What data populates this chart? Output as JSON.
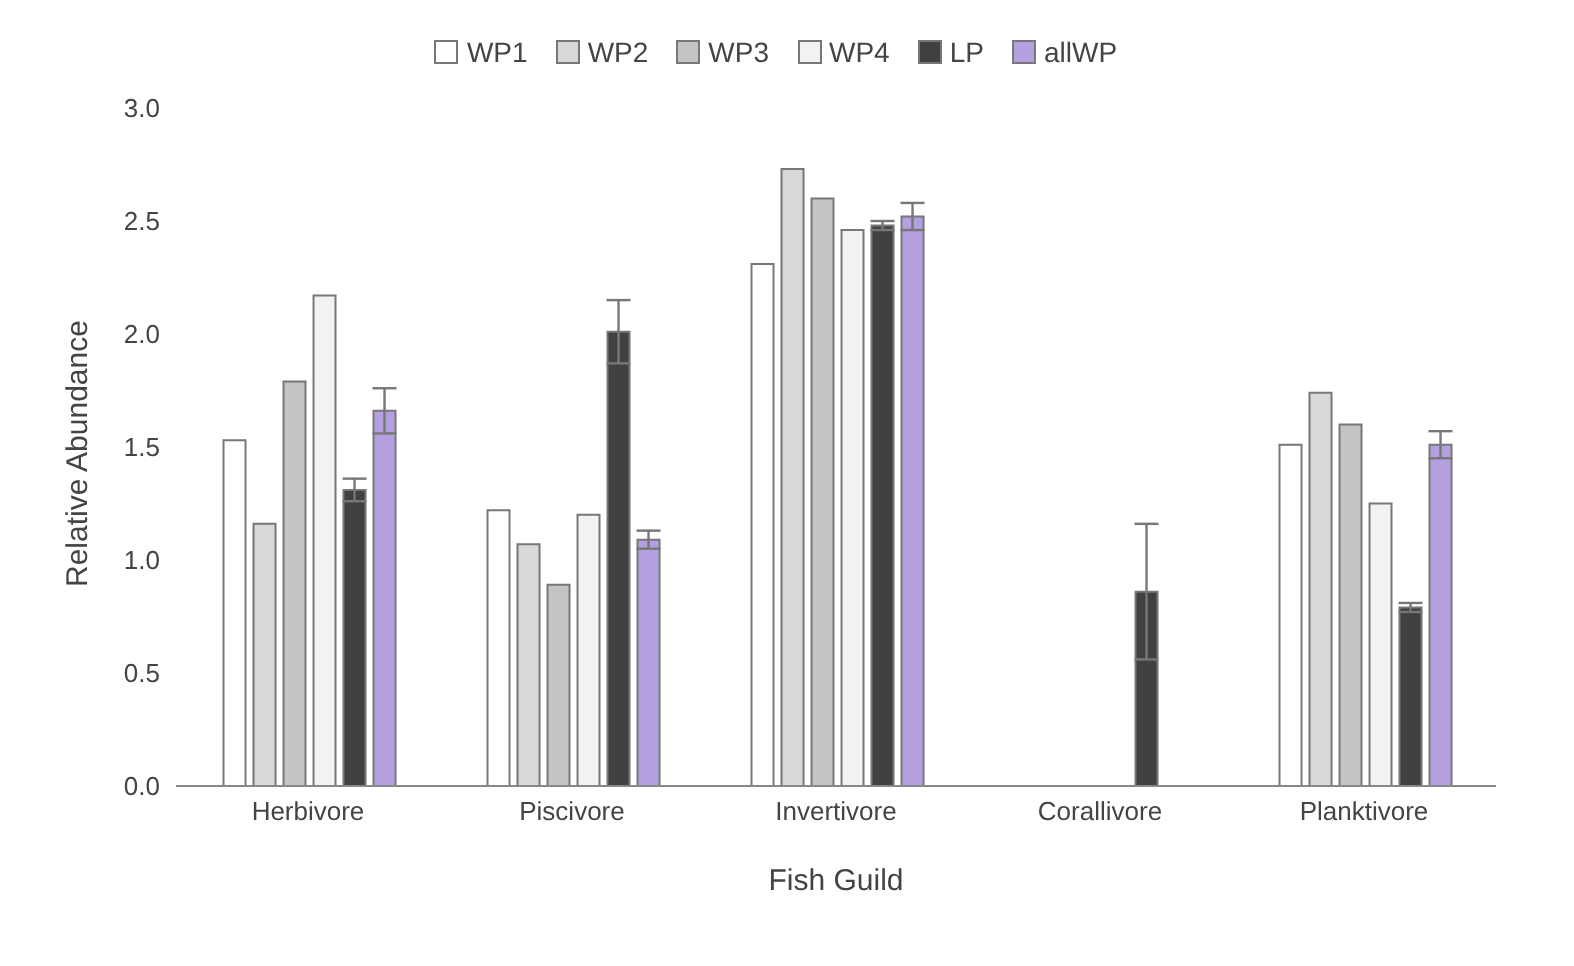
{
  "chart_data": {
    "type": "bar",
    "xlabel": "Fish Guild",
    "ylabel": "Relative Abundance",
    "categories": [
      "Herbivore",
      "Piscivore",
      "Invertivore",
      "Corallivore",
      "Planktivore"
    ],
    "series": [
      {
        "name": "WP1",
        "color": "#ffffff",
        "values": [
          1.53,
          1.22,
          2.31,
          null,
          1.51
        ]
      },
      {
        "name": "WP2",
        "color": "#d9d9d9",
        "values": [
          1.16,
          1.07,
          2.73,
          null,
          1.74
        ]
      },
      {
        "name": "WP3",
        "color": "#c4c4c4",
        "values": [
          1.79,
          0.89,
          2.6,
          null,
          1.6
        ]
      },
      {
        "name": "WP4",
        "color": "#f2f2f2",
        "values": [
          2.17,
          1.2,
          2.46,
          null,
          1.25
        ]
      },
      {
        "name": "LP",
        "color": "#404040",
        "values": [
          1.31,
          2.01,
          2.48,
          0.86,
          0.79
        ],
        "errors": [
          0.05,
          0.14,
          0.02,
          0.3,
          0.02
        ]
      },
      {
        "name": "allWP",
        "color": "#b4a0e0",
        "values": [
          1.66,
          1.09,
          2.52,
          null,
          1.51
        ],
        "errors": [
          0.1,
          0.04,
          0.06,
          null,
          0.06
        ]
      }
    ],
    "ylim": [
      0,
      3
    ],
    "yticks": [
      {
        "value": 0,
        "label": "0.0"
      },
      0.5,
      {
        "value": 1,
        "label": "1.0"
      },
      1.5,
      {
        "value": 2,
        "label": "2.0"
      },
      2.5,
      {
        "value": 3,
        "label": "3.0"
      }
    ],
    "grid": false,
    "legend": "top"
  }
}
